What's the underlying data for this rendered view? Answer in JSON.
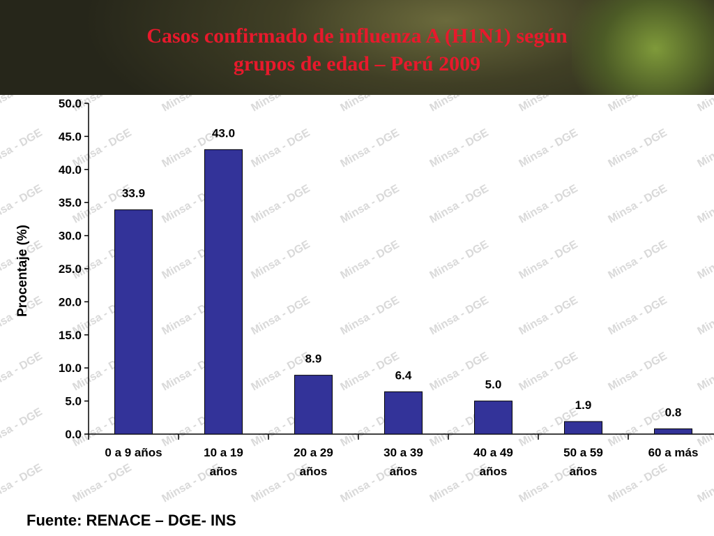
{
  "slide": {
    "title_line1": "Casos confirmado de influenza A (H1N1) según",
    "title_line2": "grupos de edad – Perú 2009",
    "source": "Fuente: RENACE – DGE- INS",
    "watermark_text": "Minsa - DGE"
  },
  "colors": {
    "bar": "#333399",
    "title": "#e8192c"
  },
  "chart_data": {
    "type": "bar",
    "categories": [
      [
        "0 a 9 años"
      ],
      [
        "10 a 19",
        "años"
      ],
      [
        "20 a 29",
        "años"
      ],
      [
        "30 a 39",
        "años"
      ],
      [
        "40 a 49",
        "años"
      ],
      [
        "50 a 59",
        "años"
      ],
      [
        "60 a más"
      ]
    ],
    "values": [
      33.9,
      43.0,
      8.9,
      6.4,
      5.0,
      1.9,
      0.8
    ],
    "data_labels": [
      "33.9",
      "43.0",
      "8.9",
      "6.4",
      "5.0",
      "1.9",
      "0.8"
    ],
    "ylabel": "Procentaje (%)",
    "xlabel": "",
    "ylim": [
      0,
      50
    ],
    "yticks": [
      0,
      5,
      10,
      15,
      20,
      25,
      30,
      35,
      40,
      45,
      50
    ],
    "ytick_labels": [
      "0.0",
      "5.0",
      "10.0",
      "15.0",
      "20.0",
      "25.0",
      "30.0",
      "35.0",
      "40.0",
      "45.0",
      "50.0"
    ],
    "grid": false,
    "legend": "none"
  }
}
